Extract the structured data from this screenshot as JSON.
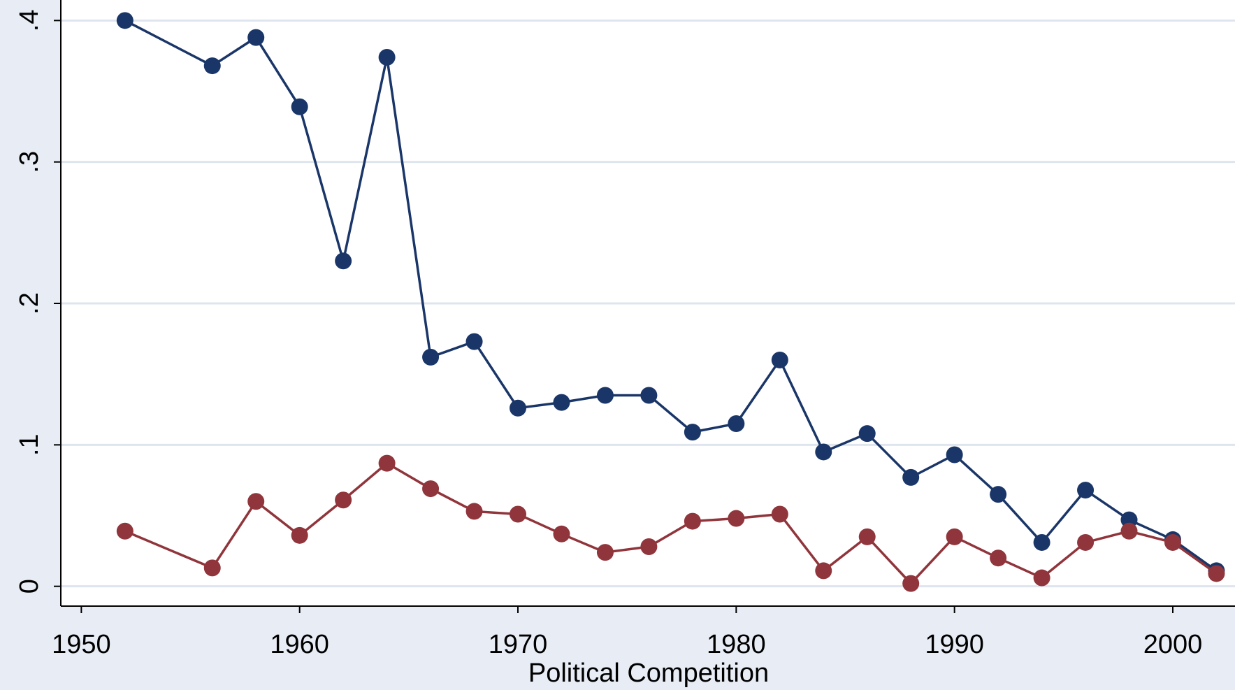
{
  "chart_data": {
    "type": "line",
    "x_label": "Political Competition",
    "x": [
      1952,
      1956,
      1958,
      1960,
      1962,
      1964,
      1966,
      1968,
      1970,
      1972,
      1974,
      1976,
      1978,
      1980,
      1982,
      1984,
      1986,
      1988,
      1990,
      1992,
      1994,
      1996,
      1998,
      2000,
      2002
    ],
    "series": [
      {
        "color": "#1a3668",
        "values": [
          0.4,
          0.368,
          0.388,
          0.339,
          0.23,
          0.374,
          0.162,
          0.173,
          0.126,
          0.13,
          0.135,
          0.135,
          0.109,
          0.115,
          0.16,
          0.095,
          0.108,
          0.077,
          0.093,
          0.065,
          0.031,
          0.068,
          0.047,
          0.033,
          0.011
        ]
      },
      {
        "color": "#90353b",
        "values": [
          0.039,
          0.013,
          0.06,
          0.036,
          0.061,
          0.087,
          0.069,
          0.053,
          0.051,
          0.037,
          0.024,
          0.028,
          0.046,
          0.048,
          0.051,
          0.011,
          0.035,
          0.002,
          0.035,
          0.02,
          0.006,
          0.031,
          0.039,
          0.031,
          0.009
        ]
      }
    ],
    "xlim": [
      1949.06,
      2002.85
    ],
    "ylim": [
      -0.014,
      0.4145
    ],
    "xticks": [
      1950,
      1960,
      1970,
      1980,
      1990,
      2000
    ],
    "yticks": [
      0,
      {
        "value": 0.1,
        "label": ".1"
      },
      {
        "value": 0.2,
        "label": ".2"
      },
      {
        "value": 0.3,
        "label": ".3"
      },
      {
        "value": 0.4,
        "label": ".4"
      }
    ],
    "grid": true
  }
}
